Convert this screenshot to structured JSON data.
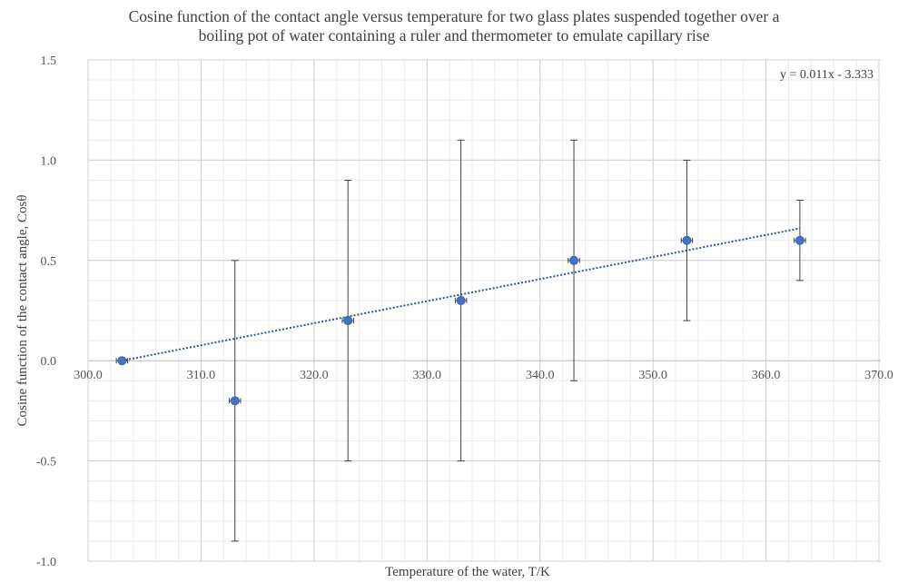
{
  "chart_data": {
    "type": "scatter",
    "title_lines": [
      "Cosine function of the contact angle versus temperature for two glass plates suspended together over a",
      "boiling pot of water containing a ruler and thermometer to emulate capillary rise"
    ],
    "xlabel": "Temperature of the water, T/K",
    "ylabel": "Cosine function of the contact angle, Cosθ",
    "xlim": [
      300,
      370
    ],
    "ylim": [
      -1.0,
      1.5
    ],
    "x_ticks": [
      "300.0",
      "310.0",
      "320.0",
      "330.0",
      "340.0",
      "350.0",
      "360.0",
      "370.0"
    ],
    "y_ticks": [
      "1.5",
      "1.0",
      "0.5",
      "0.0",
      "-0.5",
      "-1.0"
    ],
    "x_tick_values": [
      300,
      310,
      320,
      330,
      340,
      350,
      360,
      370
    ],
    "y_tick_values": [
      1.5,
      1.0,
      0.5,
      0.0,
      -0.5,
      -1.0
    ],
    "minor_x_step": 2,
    "minor_y_step": 0.1,
    "grid": true,
    "points": [
      {
        "x": 303,
        "y": 0.0,
        "yerr": 0.0,
        "xerr": 0.5
      },
      {
        "x": 313,
        "y": -0.2,
        "yerr": 0.7,
        "xerr": 0.5
      },
      {
        "x": 323,
        "y": 0.2,
        "yerr": 0.7,
        "xerr": 0.5
      },
      {
        "x": 333,
        "y": 0.3,
        "yerr": 0.8,
        "xerr": 0.5
      },
      {
        "x": 343,
        "y": 0.5,
        "yerr": 0.6,
        "xerr": 0.5
      },
      {
        "x": 353,
        "y": 0.6,
        "yerr": 0.4,
        "xerr": 0.5
      },
      {
        "x": 363,
        "y": 0.6,
        "yerr": 0.2,
        "xerr": 0.5
      }
    ],
    "trendline": {
      "style": "dotted",
      "slope": 0.011,
      "intercept": -3.333,
      "x_range": [
        303,
        363
      ],
      "label": "y = 0.011x - 3.333"
    },
    "marker_color": "#4472c4",
    "trend_color": "#2f5597",
    "errorbar_color": "#404040"
  }
}
